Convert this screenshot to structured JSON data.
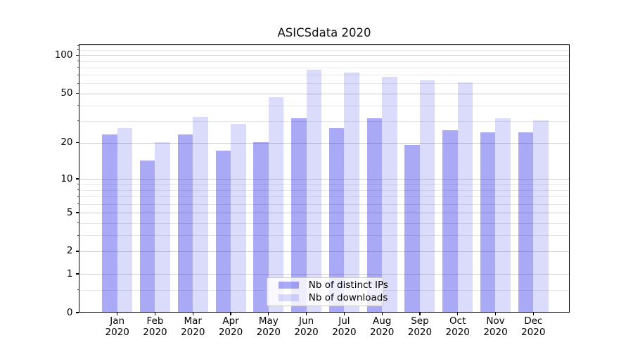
{
  "chart_data": {
    "type": "bar",
    "title": "ASICSdata 2020",
    "x_year": "2020",
    "months": [
      "Jan",
      "Feb",
      "Mar",
      "Apr",
      "May",
      "Jun",
      "Jul",
      "Aug",
      "Sep",
      "Oct",
      "Nov",
      "Dec"
    ],
    "series": [
      {
        "name": "Nb of distinct IPs",
        "color": "rgba(30,30,230,0.38)",
        "values": [
          23,
          14,
          23,
          17,
          20,
          31,
          26,
          31,
          19,
          25,
          24,
          24
        ]
      },
      {
        "name": "Nb of downloads",
        "color": "rgba(30,30,230,0.16)",
        "values": [
          26,
          20,
          32,
          28,
          46,
          76,
          72,
          67,
          63,
          60,
          31,
          30
        ]
      }
    ],
    "y_axis": {
      "scale": "log1p",
      "major_ticks": [
        0,
        1,
        2,
        5,
        10,
        20,
        50,
        100
      ],
      "minor_gridlines": [
        0.5,
        3,
        4,
        6,
        7,
        8,
        9,
        30,
        40,
        60,
        70,
        80,
        90,
        110,
        120
      ],
      "ylim": [
        0,
        122
      ]
    },
    "legend": {
      "position": "lower center",
      "entries": [
        "Nb of distinct IPs",
        "Nb of downloads"
      ]
    },
    "colors": {
      "grid_major": "#cfcfcf",
      "grid_minor": "#e7e7e7",
      "spine": "#000000",
      "background": "#ffffff"
    }
  }
}
